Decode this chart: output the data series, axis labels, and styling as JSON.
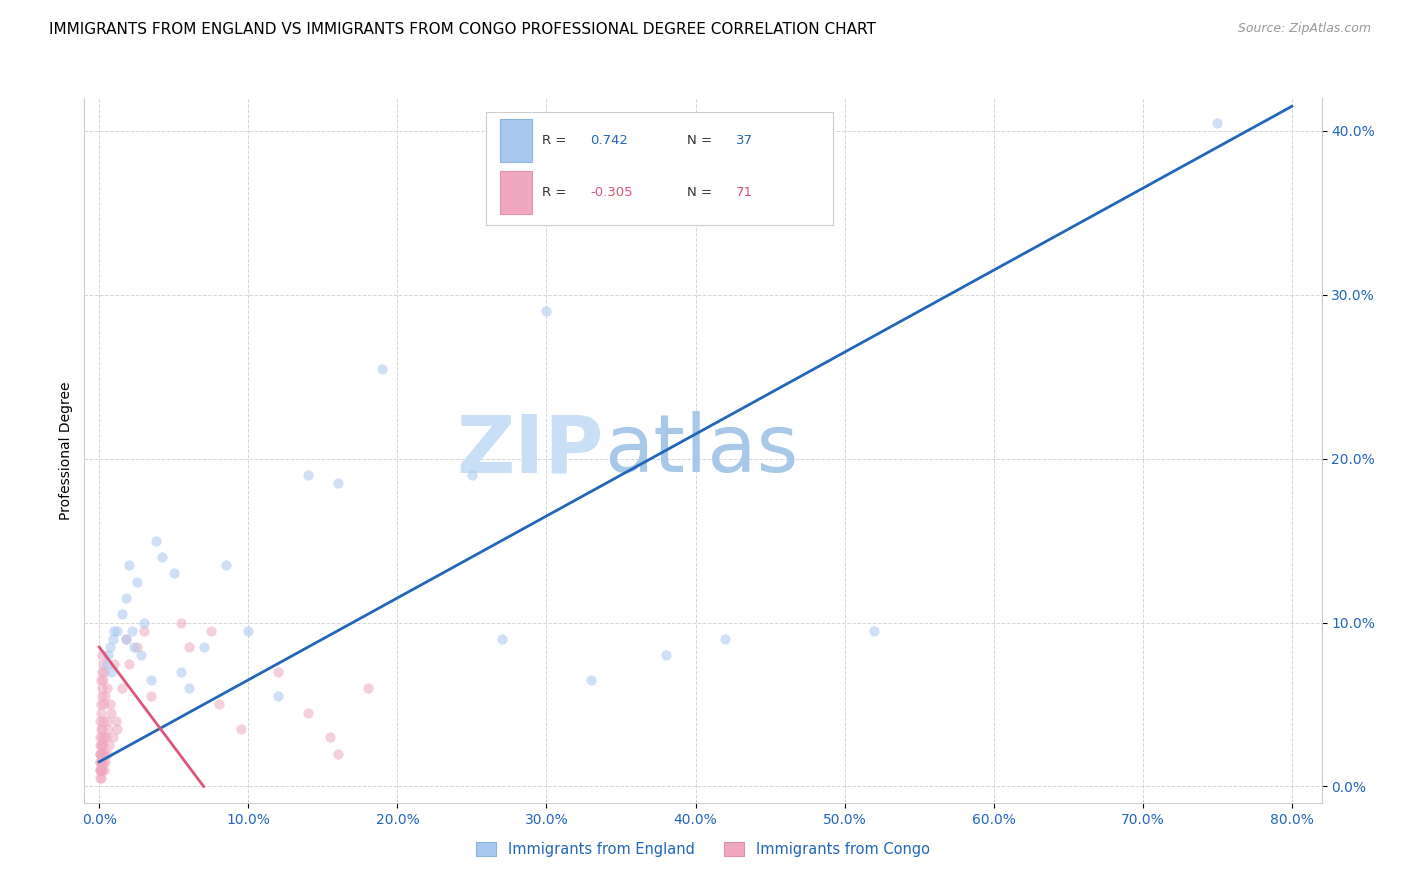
{
  "title": "IMMIGRANTS FROM ENGLAND VS IMMIGRANTS FROM CONGO PROFESSIONAL DEGREE CORRELATION CHART",
  "source": "Source: ZipAtlas.com",
  "ylabel": "Professional Degree",
  "x_ticks": [
    0.0,
    10.0,
    20.0,
    30.0,
    40.0,
    50.0,
    60.0,
    70.0,
    80.0
  ],
  "y_ticks": [
    0.0,
    10.0,
    20.0,
    30.0,
    40.0
  ],
  "xlim": [
    -1.0,
    82.0
  ],
  "ylim": [
    -1.0,
    42.0
  ],
  "england_color": "#a8c8f0",
  "congo_color": "#f0a8c0",
  "england_line_color": "#2266bb",
  "congo_line_color": "#dd5577",
  "england_R": 0.742,
  "england_N": 37,
  "congo_R": -0.305,
  "congo_N": 71,
  "legend_bottom_labels": [
    "Immigrants from England",
    "Immigrants from Congo"
  ],
  "watermark_zip": "ZIP",
  "watermark_atlas": "atlas",
  "background_color": "#ffffff",
  "grid_color": "#cccccc",
  "title_fontsize": 11,
  "axis_tick_fontsize": 10,
  "ylabel_fontsize": 10,
  "scatter_size": 55,
  "scatter_alpha": 0.55,
  "england_line_x0": 0.0,
  "england_line_y0": 1.5,
  "england_line_x1": 80.0,
  "england_line_y1": 41.5,
  "congo_line_x0": 0.0,
  "congo_line_y0": 8.5,
  "congo_line_x1": 7.0,
  "congo_line_y1": 0.0,
  "england_scatter_x": [
    1.2,
    1.5,
    1.8,
    1.8,
    2.0,
    2.2,
    2.3,
    2.5,
    2.8,
    3.0,
    3.5,
    3.8,
    4.2,
    5.0,
    5.5,
    6.0,
    7.0,
    8.5,
    10.0,
    12.0,
    14.0,
    16.0,
    19.0,
    25.0,
    27.0,
    30.0,
    33.0,
    38.0,
    42.0,
    52.0,
    75.0
  ],
  "england_scatter_y": [
    9.5,
    10.5,
    9.0,
    11.5,
    13.5,
    9.5,
    8.5,
    12.5,
    8.0,
    10.0,
    6.5,
    15.0,
    14.0,
    13.0,
    7.0,
    6.0,
    8.5,
    13.5,
    9.5,
    5.5,
    19.0,
    18.5,
    25.5,
    19.0,
    9.0,
    29.0,
    6.5,
    8.0,
    9.0,
    9.5,
    40.5
  ],
  "england_extra_x": [
    0.5,
    0.6,
    0.7,
    0.8,
    0.9,
    1.0
  ],
  "england_extra_y": [
    7.5,
    8.0,
    8.5,
    7.0,
    9.0,
    9.5
  ],
  "congo_cluster_x": [
    0.05,
    0.05,
    0.05,
    0.05,
    0.06,
    0.06,
    0.07,
    0.07,
    0.08,
    0.08,
    0.09,
    0.09,
    0.1,
    0.1,
    0.1,
    0.1,
    0.12,
    0.12,
    0.13,
    0.13,
    0.15,
    0.15,
    0.15,
    0.16,
    0.16,
    0.18,
    0.18,
    0.2,
    0.2,
    0.2,
    0.22,
    0.22,
    0.25,
    0.25,
    0.28,
    0.28,
    0.3,
    0.3,
    0.32,
    0.35,
    0.35,
    0.4,
    0.4,
    0.45,
    0.5,
    0.5,
    0.55,
    0.6,
    0.65,
    0.7,
    0.8,
    0.9,
    1.0,
    1.1,
    1.2,
    1.5,
    1.8,
    2.0,
    2.5,
    3.0,
    3.5,
    5.5,
    6.0,
    7.5,
    8.0,
    9.5,
    12.0,
    14.0,
    15.5,
    16.0,
    18.0
  ],
  "congo_cluster_y": [
    0.5,
    1.0,
    1.5,
    2.0,
    1.0,
    2.5,
    1.5,
    3.0,
    2.0,
    4.0,
    1.0,
    3.5,
    0.5,
    1.5,
    2.5,
    5.0,
    1.0,
    4.5,
    2.0,
    6.5,
    1.5,
    3.0,
    7.0,
    2.5,
    5.5,
    2.0,
    8.0,
    1.0,
    3.5,
    6.0,
    2.0,
    7.5,
    1.5,
    4.0,
    2.5,
    6.5,
    1.0,
    5.0,
    3.0,
    2.0,
    7.0,
    1.5,
    5.5,
    3.0,
    2.0,
    6.0,
    4.0,
    3.5,
    2.5,
    5.0,
    4.5,
    3.0,
    7.5,
    4.0,
    3.5,
    6.0,
    9.0,
    7.5,
    8.5,
    9.5,
    5.5,
    10.0,
    8.5,
    9.5,
    5.0,
    3.5,
    7.0,
    4.5,
    3.0,
    2.0,
    6.0
  ]
}
